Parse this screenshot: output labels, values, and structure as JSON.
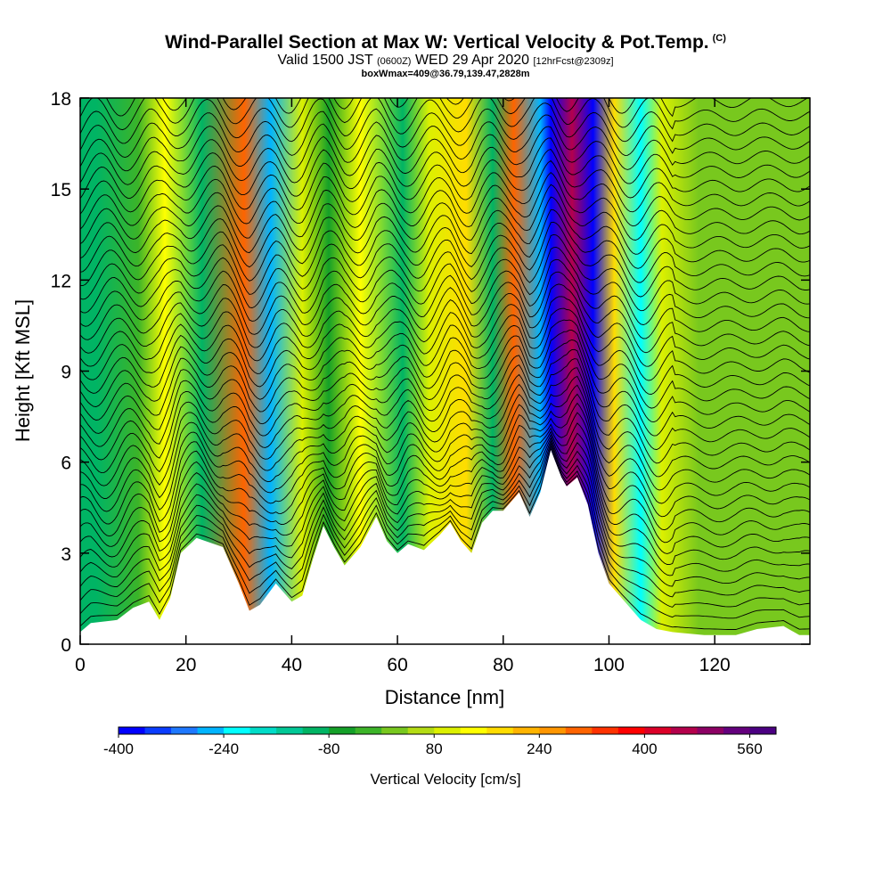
{
  "header": {
    "title": "Wind-Parallel Section at Max W: Vertical Velocity & Pot.Temp.",
    "title_mark": "(C)",
    "subtitle_main": "Valid 1500 JST",
    "subtitle_utc": "(0600Z)",
    "subtitle_date": "WED 29 Apr 2020",
    "subtitle_fcst": "[12hrFcst@2309z]",
    "box_info": "boxWmax=409@36.79,139.47,2828m"
  },
  "chart_data": {
    "type": "heatmap",
    "title": "Wind-Parallel Section at Max W: Vertical Velocity & Pot.Temp.",
    "xlabel": "Distance [nm]",
    "ylabel": "Height [Kft MSL]",
    "xlim": [
      0,
      138
    ],
    "ylim": [
      0,
      18
    ],
    "x_ticks": [
      0,
      20,
      40,
      60,
      80,
      100,
      120
    ],
    "y_ticks": [
      0,
      3,
      6,
      9,
      12,
      15,
      18
    ],
    "colorbar": {
      "label": "Vertical Velocity [cm/s]",
      "tick_values": [
        -400,
        -240,
        -80,
        80,
        240,
        400,
        560
      ],
      "tick_labels": [
        "-400",
        "-240",
        "-80",
        "80",
        "240",
        "400",
        "560"
      ],
      "min": -400,
      "max": 600,
      "colors": [
        "#0000ff",
        "#0a3cff",
        "#1e78ff",
        "#00b4ff",
        "#00ffff",
        "#00dcc8",
        "#00c896",
        "#00b464",
        "#14a028",
        "#3cb428",
        "#78c81e",
        "#b4dc14",
        "#dcf000",
        "#ffff00",
        "#ffdc00",
        "#ffb400",
        "#ff9600",
        "#ff6400",
        "#ff3200",
        "#ff0000",
        "#dc0028",
        "#b4004b",
        "#8c0064",
        "#64007d",
        "#4b0082"
      ]
    },
    "wave_columns": [
      {
        "x": 3,
        "w": -120
      },
      {
        "x": 11,
        "w": -40
      },
      {
        "x": 16,
        "w": 120
      },
      {
        "x": 23,
        "w": -100
      },
      {
        "x": 31,
        "w": 290
      },
      {
        "x": 36,
        "w": -260
      },
      {
        "x": 42,
        "w": 100
      },
      {
        "x": 47,
        "w": -60
      },
      {
        "x": 53,
        "w": 150
      },
      {
        "x": 61,
        "w": -90
      },
      {
        "x": 66,
        "w": 80
      },
      {
        "x": 73,
        "w": 170
      },
      {
        "x": 78,
        "w": -100
      },
      {
        "x": 82,
        "w": 300
      },
      {
        "x": 87,
        "w": -270
      },
      {
        "x": 89,
        "w": -400
      },
      {
        "x": 93,
        "w": 460
      },
      {
        "x": 97,
        "w": -390
      },
      {
        "x": 101,
        "w": 180
      },
      {
        "x": 106,
        "w": -210
      },
      {
        "x": 110,
        "w": 100
      },
      {
        "x": 117,
        "w": 0
      },
      {
        "x": 130,
        "w": 0
      }
    ],
    "terrain_kft": [
      [
        0,
        0.4
      ],
      [
        2,
        0.7
      ],
      [
        7,
        0.8
      ],
      [
        10,
        1.2
      ],
      [
        13,
        1.4
      ],
      [
        15,
        0.8
      ],
      [
        17,
        1.5
      ],
      [
        19,
        3.0
      ],
      [
        22,
        3.5
      ],
      [
        27,
        3.2
      ],
      [
        30,
        2.0
      ],
      [
        32,
        1.1
      ],
      [
        34,
        1.3
      ],
      [
        37,
        2.0
      ],
      [
        40,
        1.4
      ],
      [
        42,
        1.6
      ],
      [
        44,
        2.8
      ],
      [
        46,
        3.9
      ],
      [
        48,
        3.2
      ],
      [
        50,
        2.6
      ],
      [
        53,
        3.2
      ],
      [
        56,
        4.2
      ],
      [
        58,
        3.4
      ],
      [
        60,
        3.0
      ],
      [
        62,
        3.3
      ],
      [
        65,
        3.1
      ],
      [
        68,
        3.6
      ],
      [
        70,
        4.0
      ],
      [
        72,
        3.4
      ],
      [
        74,
        3.0
      ],
      [
        76,
        4.0
      ],
      [
        78,
        4.4
      ],
      [
        80,
        4.4
      ],
      [
        83,
        5.0
      ],
      [
        85,
        4.2
      ],
      [
        87,
        5.0
      ],
      [
        89,
        6.4
      ],
      [
        91,
        5.5
      ],
      [
        92,
        5.2
      ],
      [
        94,
        5.5
      ],
      [
        96,
        4.6
      ],
      [
        98,
        3.0
      ],
      [
        100,
        2.0
      ],
      [
        102,
        1.6
      ],
      [
        104,
        1.2
      ],
      [
        106,
        0.8
      ],
      [
        109,
        0.5
      ],
      [
        112,
        0.4
      ],
      [
        118,
        0.3
      ],
      [
        124,
        0.3
      ],
      [
        128,
        0.5
      ],
      [
        133,
        0.6
      ],
      [
        136,
        0.3
      ],
      [
        138,
        0.3
      ]
    ],
    "isentrope_count": 40
  }
}
